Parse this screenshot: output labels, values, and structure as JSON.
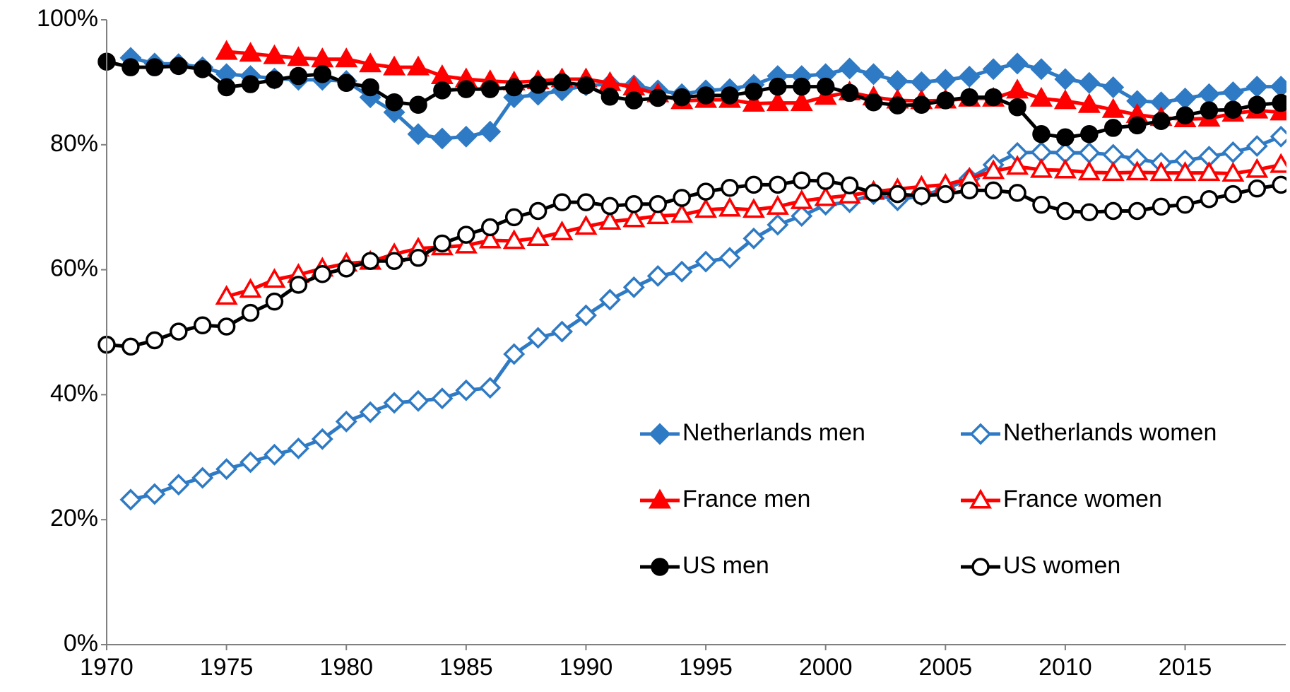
{
  "chart_data": {
    "type": "line",
    "x": [
      1970,
      1971,
      1972,
      1973,
      1974,
      1975,
      1976,
      1977,
      1978,
      1979,
      1980,
      1981,
      1982,
      1983,
      1984,
      1985,
      1986,
      1987,
      1988,
      1989,
      1990,
      1991,
      1992,
      1993,
      1994,
      1995,
      1996,
      1997,
      1998,
      1999,
      2000,
      2001,
      2002,
      2003,
      2004,
      2005,
      2006,
      2007,
      2008,
      2009,
      2010,
      2011,
      2012,
      2013,
      2014,
      2015,
      2016,
      2017,
      2018,
      2019
    ],
    "xlim": [
      1970,
      2019.2
    ],
    "xticks": [
      1970,
      1975,
      1980,
      1985,
      1990,
      1995,
      2000,
      2005,
      2010,
      2015
    ],
    "ylim": [
      0,
      100
    ],
    "yticks": [
      {
        "value": 0,
        "label": "0%"
      },
      {
        "value": 20,
        "label": "20%"
      },
      {
        "value": 40,
        "label": "40%"
      },
      {
        "value": 60,
        "label": "60%"
      },
      {
        "value": 80,
        "label": "80%"
      },
      {
        "value": 100,
        "label": "100%"
      }
    ],
    "grid": false,
    "legend": "lower right",
    "series": [
      {
        "name": "Netherlands men",
        "color": "#2e7ac4",
        "marker": "diamond",
        "filled": true,
        "values": [
          null,
          93.9,
          93.0,
          92.9,
          92.4,
          91.3,
          91.0,
          90.6,
          90.4,
          90.4,
          90.2,
          87.6,
          85.2,
          81.7,
          81.0,
          81.3,
          82.1,
          87.6,
          88.0,
          88.7,
          89.5,
          89.7,
          89.5,
          88.7,
          88.1,
          88.7,
          88.9,
          89.6,
          91.0,
          91.0,
          91.3,
          92.2,
          91.3,
          90.2,
          90.0,
          90.4,
          90.9,
          92.1,
          93.0,
          92.1,
          90.5,
          89.9,
          89.2,
          87.0,
          86.8,
          87.4,
          88.1,
          88.4,
          89.3,
          89.3
        ]
      },
      {
        "name": "Netherlands women",
        "color": "#2e7ac4",
        "marker": "diamond",
        "filled": false,
        "values": [
          null,
          23.2,
          24.1,
          25.6,
          26.7,
          28.1,
          29.2,
          30.4,
          31.4,
          32.9,
          35.7,
          37.2,
          38.7,
          39.0,
          39.4,
          40.7,
          41.1,
          46.5,
          49.1,
          50.1,
          52.7,
          55.2,
          57.2,
          59.0,
          59.7,
          61.3,
          61.9,
          65.0,
          67.2,
          68.6,
          70.4,
          70.8,
          72.1,
          71.1,
          71.9,
          72.9,
          74.6,
          76.8,
          78.7,
          78.8,
          78.7,
          78.7,
          78.4,
          77.7,
          77.1,
          77.5,
          78.1,
          78.8,
          79.8,
          81.3
        ]
      },
      {
        "name": "France men",
        "color": "#ff0000",
        "marker": "triangle",
        "filled": true,
        "values": [
          null,
          null,
          null,
          null,
          null,
          94.9,
          94.6,
          94.2,
          93.9,
          93.7,
          93.7,
          92.9,
          92.4,
          92.4,
          91.0,
          90.5,
          90.2,
          90.0,
          90.2,
          90.5,
          90.5,
          89.9,
          89.2,
          88.1,
          87.0,
          87.2,
          87.2,
          86.6,
          86.7,
          86.7,
          87.7,
          88.4,
          87.6,
          87.1,
          87.0,
          87.1,
          87.4,
          87.4,
          88.7,
          87.4,
          87.0,
          86.4,
          85.6,
          84.8,
          84.3,
          84.1,
          84.2,
          85.0,
          85.5,
          85.2
        ]
      },
      {
        "name": "France women",
        "color": "#ff0000",
        "marker": "triangle",
        "filled": false,
        "values": [
          null,
          null,
          null,
          null,
          null,
          55.7,
          56.8,
          58.4,
          59.2,
          60.2,
          61.0,
          61.3,
          62.5,
          63.4,
          63.6,
          63.9,
          64.7,
          64.6,
          65.1,
          66.0,
          66.9,
          67.7,
          68.1,
          68.6,
          68.8,
          69.6,
          69.8,
          69.6,
          70.1,
          71.0,
          71.5,
          71.9,
          72.5,
          72.9,
          73.3,
          73.6,
          74.6,
          75.8,
          76.5,
          76.0,
          75.9,
          75.6,
          75.5,
          75.6,
          75.5,
          75.5,
          75.5,
          75.4,
          76.0,
          76.8
        ]
      },
      {
        "name": "US men",
        "color": "#000000",
        "marker": "circle",
        "filled": true,
        "values": [
          93.3,
          92.4,
          92.4,
          92.6,
          92.1,
          89.2,
          89.7,
          90.4,
          91.0,
          91.3,
          89.9,
          89.2,
          86.8,
          86.4,
          88.7,
          88.9,
          88.9,
          89.2,
          89.6,
          90.0,
          89.5,
          87.7,
          87.1,
          87.5,
          87.6,
          87.9,
          87.9,
          88.5,
          89.3,
          89.3,
          89.3,
          88.3,
          86.8,
          86.3,
          86.4,
          87.1,
          87.6,
          87.6,
          86.0,
          81.7,
          81.2,
          81.7,
          82.7,
          83.1,
          83.8,
          84.7,
          85.5,
          85.6,
          86.4,
          86.7
        ]
      },
      {
        "name": "US women",
        "color": "#000000",
        "marker": "circle",
        "filled": false,
        "values": [
          48.0,
          47.7,
          48.7,
          50.1,
          51.1,
          50.9,
          53.1,
          54.9,
          57.6,
          59.3,
          60.2,
          61.4,
          61.4,
          61.9,
          64.2,
          65.6,
          66.8,
          68.4,
          69.4,
          70.8,
          70.8,
          70.2,
          70.5,
          70.5,
          71.5,
          72.5,
          73.1,
          73.6,
          73.6,
          74.3,
          74.2,
          73.5,
          72.3,
          72.1,
          71.8,
          72.1,
          72.7,
          72.7,
          72.3,
          70.4,
          69.4,
          69.2,
          69.4,
          69.4,
          70.1,
          70.4,
          71.3,
          72.1,
          73.0,
          73.6
        ]
      }
    ]
  }
}
